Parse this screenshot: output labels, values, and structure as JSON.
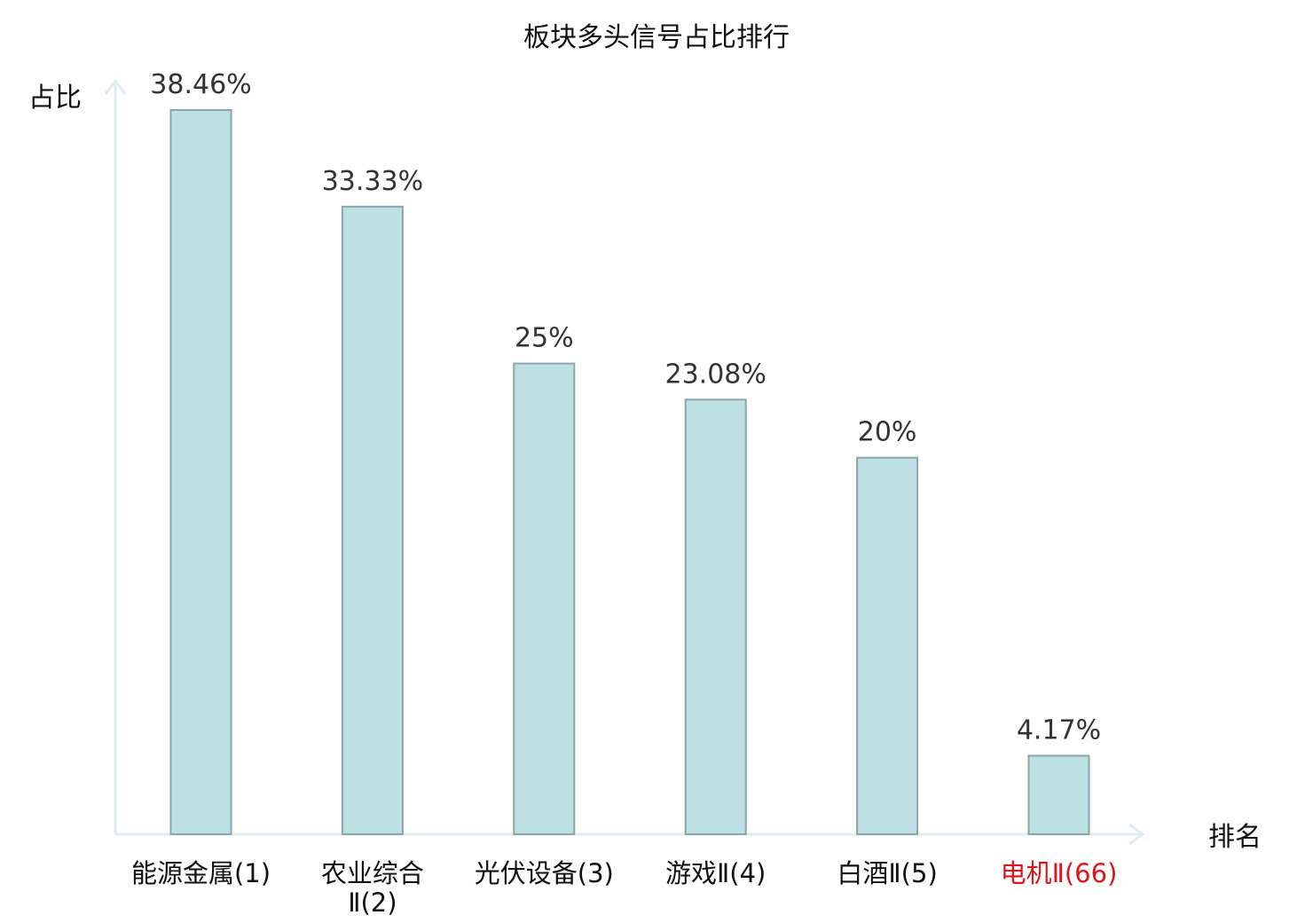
{
  "chart_data": {
    "type": "bar",
    "title": "板块多头信号占比排行",
    "ylabel": "占比",
    "xlabel": "排名",
    "ylim": [
      0,
      40
    ],
    "grid": false,
    "categories": [
      {
        "name": "能源金属",
        "rank": "(1)",
        "lines": [
          "能源金属(1)"
        ],
        "highlight": false
      },
      {
        "name": "农业综合Ⅱ",
        "rank": "(2)",
        "lines": [
          "农业综合",
          "Ⅱ(2)"
        ],
        "highlight": false
      },
      {
        "name": "光伏设备",
        "rank": "(3)",
        "lines": [
          "光伏设备(3)"
        ],
        "highlight": false
      },
      {
        "name": "游戏Ⅱ",
        "rank": "(4)",
        "lines": [
          "游戏Ⅱ(4)"
        ],
        "highlight": false
      },
      {
        "name": "白酒Ⅱ",
        "rank": "(5)",
        "lines": [
          "白酒Ⅱ(5)"
        ],
        "highlight": false
      },
      {
        "name": "电机Ⅱ",
        "rank": "(66)",
        "lines": [
          "电机Ⅱ(66)"
        ],
        "highlight": true
      }
    ],
    "values": [
      38.46,
      33.33,
      25,
      23.08,
      20,
      4.17
    ],
    "value_labels": [
      "38.46%",
      "33.33%",
      "25%",
      "23.08%",
      "20%",
      "4.17%"
    ]
  },
  "colors": {
    "bar_fill": "#bde0e2",
    "bar_stroke": "#8aa6a8",
    "axis": "#dcefee",
    "highlight_text": "#e0141e",
    "normal_text": "#111111"
  }
}
